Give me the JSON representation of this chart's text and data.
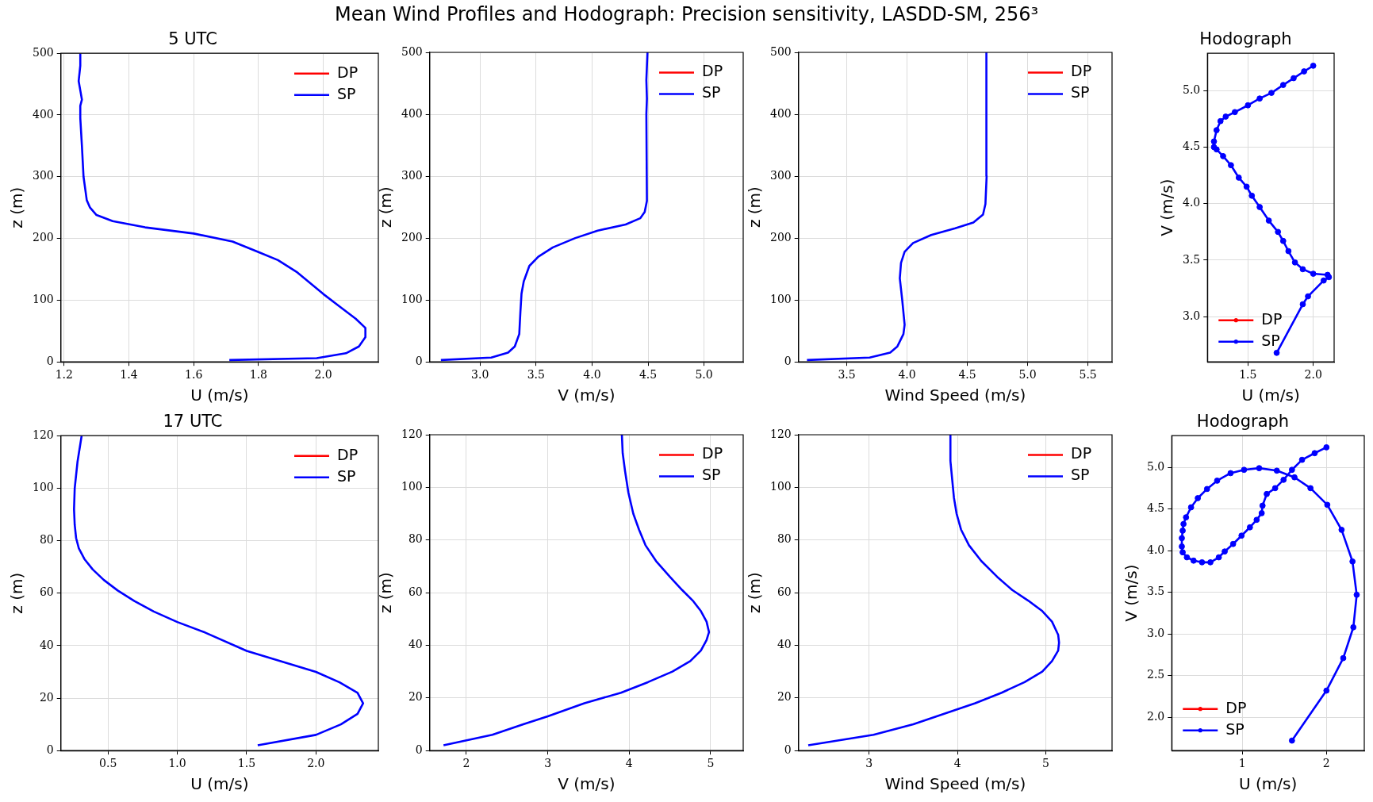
{
  "chart_data": [
    {
      "type": "line",
      "title": "5 UTC",
      "annotations": [
        "Mean Wind Profiles and Hodograph: Precision sensitivity, LASDD-SM, 256³"
      ],
      "xlabel": "U (m/s)",
      "ylabel": "z (m)",
      "xlim": [
        1.19,
        2.17
      ],
      "xticks": [
        1.2,
        1.4,
        1.6,
        1.8,
        {
          "value": 2,
          "label": "2.0"
        }
      ],
      "ylim": [
        0,
        500
      ],
      "yticks": [
        0,
        100,
        200,
        300,
        400,
        500
      ],
      "grid": true,
      "legend": "top right",
      "x": [
        1.71,
        1.98,
        2.07,
        2.11,
        2.13,
        2.13,
        2.1,
        2.05,
        2.0,
        1.92,
        1.86,
        1.8,
        1.72,
        1.6,
        1.45,
        1.35,
        1.3,
        1.28,
        1.27,
        1.26,
        1.255,
        1.25,
        1.25,
        1.255,
        1.25,
        1.245,
        1.25,
        1.25
      ],
      "series": [
        {
          "name": "DP",
          "color": "#ff0000",
          "values": [
            null,
            null,
            null,
            null,
            null,
            null,
            null,
            null,
            null,
            null,
            null,
            null,
            null,
            null,
            null,
            null,
            null,
            null,
            null,
            null,
            null,
            null,
            null,
            null,
            null,
            null,
            null,
            null
          ]
        },
        {
          "name": "SP",
          "color": "#0000ff",
          "values": [
            3,
            6,
            14,
            25,
            40,
            55,
            70,
            90,
            110,
            145,
            165,
            178,
            195,
            208,
            218,
            228,
            238,
            250,
            262,
            300,
            350,
            395,
            415,
            425,
            440,
            455,
            480,
            500
          ]
        }
      ]
    },
    {
      "type": "line",
      "xlabel": "V (m/s)",
      "ylabel": "z (m)",
      "xlim": [
        2.55,
        5.35
      ],
      "xticks": [
        {
          "value": 3,
          "label": "3.0"
        },
        3.5,
        {
          "value": 4,
          "label": "4.0"
        },
        4.5,
        {
          "value": 5,
          "label": "5.0"
        }
      ],
      "ylim": [
        0,
        500
      ],
      "yticks": [
        0,
        100,
        200,
        300,
        400,
        500
      ],
      "grid": true,
      "legend": "top right",
      "x": [
        2.65,
        3.1,
        3.25,
        3.31,
        3.35,
        3.36,
        3.37,
        3.39,
        3.44,
        3.52,
        3.65,
        3.85,
        4.05,
        4.3,
        4.43,
        4.47,
        4.49,
        4.485,
        4.49,
        4.485,
        4.495
      ],
      "series": [
        {
          "name": "DP",
          "color": "#ff0000",
          "values": [
            null,
            null,
            null,
            null,
            null,
            null,
            null,
            null,
            null,
            null,
            null,
            null,
            null,
            null,
            null,
            null,
            null,
            null,
            null,
            null,
            null
          ]
        },
        {
          "name": "SP",
          "color": "#0000ff",
          "values": [
            3,
            7,
            15,
            25,
            45,
            80,
            110,
            130,
            155,
            170,
            185,
            200,
            212,
            222,
            232,
            242,
            260,
            400,
            425,
            455,
            500
          ]
        }
      ]
    },
    {
      "type": "line",
      "xlabel": "Wind Speed (m/s)",
      "ylabel": "z (m)",
      "xlim": [
        3.1,
        5.7
      ],
      "xticks": [
        3.5,
        {
          "value": 4,
          "label": "4.0"
        },
        4.5,
        {
          "value": 5,
          "label": "5.0"
        },
        5.5
      ],
      "ylim": [
        0,
        500
      ],
      "yticks": [
        0,
        100,
        200,
        300,
        400,
        500
      ],
      "grid": true,
      "legend": "top right",
      "x": [
        3.17,
        3.69,
        3.86,
        3.92,
        3.97,
        3.98,
        3.96,
        3.94,
        3.95,
        3.98,
        4.05,
        4.2,
        4.4,
        4.55,
        4.63,
        4.65,
        4.66,
        4.66,
        4.655,
        4.66,
        4.655,
        4.66
      ],
      "series": [
        {
          "name": "DP",
          "color": "#ff0000",
          "values": [
            null,
            null,
            null,
            null,
            null,
            null,
            null,
            null,
            null,
            null,
            null,
            null,
            null,
            null,
            null,
            null,
            null,
            null,
            null,
            null,
            null,
            null
          ]
        },
        {
          "name": "SP",
          "color": "#0000ff",
          "values": [
            3,
            7,
            15,
            25,
            45,
            60,
            100,
            135,
            160,
            178,
            192,
            205,
            216,
            225,
            238,
            255,
            300,
            350,
            400,
            430,
            460,
            500
          ]
        }
      ]
    },
    {
      "type": "line",
      "title": "Hodograph",
      "xlabel": "U (m/s)",
      "ylabel": "V (m/s)",
      "xlim": [
        1.19,
        2.16
      ],
      "xticks": [
        1.5,
        {
          "value": 2,
          "label": "2.0"
        }
      ],
      "ylim": [
        2.6,
        5.33
      ],
      "yticks": [
        {
          "value": 3,
          "label": "3.0"
        },
        3.5,
        {
          "value": 4,
          "label": "4.0"
        },
        4.5,
        {
          "value": 5,
          "label": "5.0"
        }
      ],
      "grid": true,
      "legend": "bottom left",
      "marker": "circle",
      "x": [
        1.72,
        1.92,
        1.96,
        2.08,
        2.12,
        2.11,
        2.0,
        1.92,
        1.86,
        1.81,
        1.77,
        1.73,
        1.66,
        1.59,
        1.53,
        1.49,
        1.43,
        1.37,
        1.31,
        1.26,
        1.24,
        1.24,
        1.26,
        1.29,
        1.33,
        1.4,
        1.5,
        1.59,
        1.68,
        1.77,
        1.85,
        1.93,
        2.0
      ],
      "series": [
        {
          "name": "DP",
          "color": "#ff0000",
          "values": [
            null,
            null,
            null,
            null,
            null,
            null,
            null,
            null,
            null,
            null,
            null,
            null,
            null,
            null,
            null,
            null,
            null,
            null,
            null,
            null,
            null,
            null,
            null,
            null,
            null,
            null,
            null,
            null,
            null,
            null,
            null,
            null,
            null
          ]
        },
        {
          "name": "SP",
          "color": "#0000ff",
          "values": [
            2.68,
            3.11,
            3.18,
            3.32,
            3.35,
            3.37,
            3.38,
            3.42,
            3.48,
            3.58,
            3.67,
            3.75,
            3.85,
            3.97,
            4.07,
            4.15,
            4.23,
            4.34,
            4.42,
            4.48,
            4.5,
            4.55,
            4.65,
            4.73,
            4.77,
            4.81,
            4.87,
            4.93,
            4.98,
            5.05,
            5.11,
            5.17,
            5.22
          ]
        }
      ]
    },
    {
      "type": "line",
      "title": "17 UTC",
      "xlabel": "U (m/s)",
      "ylabel": "z (m)",
      "xlim": [
        0.16,
        2.45
      ],
      "xticks": [
        0.5,
        {
          "value": 1,
          "label": "1.0"
        },
        1.5,
        {
          "value": 2,
          "label": "2.0"
        }
      ],
      "ylim": [
        0,
        120
      ],
      "yticks": [
        0,
        20,
        40,
        60,
        80,
        100,
        120
      ],
      "grid": true,
      "legend": "top right",
      "x": [
        1.58,
        2.0,
        2.18,
        2.3,
        2.34,
        2.3,
        2.17,
        2.0,
        1.75,
        1.5,
        1.2,
        1.0,
        0.83,
        0.69,
        0.57,
        0.47,
        0.39,
        0.33,
        0.29,
        0.27,
        0.26,
        0.255,
        0.26,
        0.28,
        0.31
      ],
      "series": [
        {
          "name": "DP",
          "color": "#ff0000",
          "values": [
            null,
            null,
            null,
            null,
            null,
            null,
            null,
            null,
            null,
            null,
            null,
            null,
            null,
            null,
            null,
            null,
            null,
            null,
            null,
            null,
            null,
            null,
            null,
            null,
            null
          ]
        },
        {
          "name": "SP",
          "color": "#0000ff",
          "values": [
            2,
            6,
            10,
            14,
            18,
            22,
            26,
            30,
            34,
            38,
            45,
            49,
            53,
            57,
            61,
            65,
            69,
            73,
            77,
            81,
            86,
            92,
            100,
            110,
            120
          ]
        }
      ]
    },
    {
      "type": "line",
      "xlabel": "V (m/s)",
      "ylabel": "z (m)",
      "xlim": [
        1.55,
        5.4
      ],
      "xticks": [
        2,
        3,
        4,
        5
      ],
      "ylim": [
        0,
        120
      ],
      "yticks": [
        0,
        20,
        40,
        60,
        80,
        100,
        120
      ],
      "grid": true,
      "legend": "top right",
      "x": [
        1.72,
        2.32,
        2.7,
        3.0,
        3.45,
        3.9,
        4.23,
        4.53,
        4.75,
        4.88,
        4.95,
        4.98,
        4.95,
        4.88,
        4.78,
        4.65,
        4.5,
        4.33,
        4.2,
        4.12,
        4.05,
        3.99,
        3.95,
        3.92,
        3.91
      ],
      "series": [
        {
          "name": "DP",
          "color": "#ff0000",
          "values": [
            null,
            null,
            null,
            null,
            null,
            null,
            null,
            null,
            null,
            null,
            null,
            null,
            null,
            null,
            null,
            null,
            null,
            null,
            null,
            null,
            null,
            null,
            null,
            null,
            null
          ]
        },
        {
          "name": "SP",
          "color": "#0000ff",
          "values": [
            2,
            6,
            10,
            13,
            18,
            22,
            26,
            30,
            34,
            38,
            42,
            45,
            49,
            53,
            57,
            61,
            66,
            72,
            78,
            84,
            90,
            98,
            106,
            113,
            120
          ]
        }
      ]
    },
    {
      "type": "line",
      "xlabel": "Wind Speed (m/s)",
      "ylabel": "z (m)",
      "xlim": [
        2.2,
        5.75
      ],
      "xticks": [
        3,
        4,
        5
      ],
      "ylim": [
        0,
        120
      ],
      "yticks": [
        0,
        20,
        40,
        60,
        80,
        100,
        120
      ],
      "grid": true,
      "legend": "top right",
      "x": [
        2.31,
        3.05,
        3.5,
        3.85,
        4.2,
        4.5,
        4.76,
        4.96,
        5.07,
        5.14,
        5.15,
        5.14,
        5.07,
        4.96,
        4.8,
        4.62,
        4.45,
        4.27,
        4.13,
        4.04,
        3.99,
        3.96,
        3.94,
        3.92,
        3.92
      ],
      "series": [
        {
          "name": "DP",
          "color": "#ff0000",
          "values": [
            null,
            null,
            null,
            null,
            null,
            null,
            null,
            null,
            null,
            null,
            null,
            null,
            null,
            null,
            null,
            null,
            null,
            null,
            null,
            null,
            null,
            null,
            null,
            null,
            null
          ]
        },
        {
          "name": "SP",
          "color": "#0000ff",
          "values": [
            2,
            6,
            10,
            14,
            18,
            22,
            26,
            30,
            34,
            38,
            41,
            44,
            49,
            53,
            57,
            61,
            66,
            72,
            78,
            84,
            90,
            96,
            103,
            110,
            120
          ]
        }
      ]
    },
    {
      "type": "line",
      "title": "Hodograph",
      "xlabel": "U (m/s)",
      "ylabel": "V (m/s)",
      "xlim": [
        0.16,
        2.45
      ],
      "xticks": [
        1,
        2
      ],
      "ylim": [
        1.6,
        5.38
      ],
      "yticks": [
        {
          "value": 2,
          "label": "2.0"
        },
        2.5,
        {
          "value": 3,
          "label": "3.0"
        },
        3.5,
        {
          "value": 4,
          "label": "4.0"
        },
        4.5,
        {
          "value": 5,
          "label": "5.0"
        }
      ],
      "grid": true,
      "legend": "bottom left",
      "marker": "circle",
      "x": [
        1.59,
        2.0,
        2.2,
        2.32,
        2.36,
        2.31,
        2.18,
        2.01,
        1.81,
        1.62,
        1.41,
        1.2,
        1.02,
        0.86,
        0.7,
        0.58,
        0.47,
        0.39,
        0.33,
        0.3,
        0.29,
        0.28,
        0.28,
        0.29,
        0.34,
        0.42,
        0.52,
        0.62,
        0.72,
        0.79,
        0.89,
        0.99,
        1.09,
        1.17,
        1.23,
        1.24,
        1.29,
        1.39,
        1.49,
        1.59,
        1.71,
        1.86,
        2.0
      ],
      "series": [
        {
          "name": "DP",
          "color": "#ff0000",
          "values": [
            null,
            null,
            null,
            null,
            null,
            null,
            null,
            null,
            null,
            null,
            null,
            null,
            null,
            null,
            null,
            null,
            null,
            null,
            null,
            null,
            null,
            null,
            null,
            null,
            null,
            null,
            null,
            null,
            null,
            null,
            null,
            null,
            null,
            null,
            null,
            null,
            null,
            null,
            null,
            null,
            null,
            null,
            null
          ]
        },
        {
          "name": "SP",
          "color": "#0000ff",
          "values": [
            1.72,
            2.32,
            2.71,
            3.08,
            3.47,
            3.87,
            4.25,
            4.55,
            4.75,
            4.88,
            4.96,
            4.99,
            4.97,
            4.93,
            4.84,
            4.74,
            4.63,
            4.52,
            4.4,
            4.32,
            4.24,
            4.15,
            4.05,
            3.98,
            3.92,
            3.88,
            3.86,
            3.86,
            3.92,
            3.99,
            4.08,
            4.18,
            4.28,
            4.37,
            4.45,
            4.54,
            4.68,
            4.75,
            4.85,
            4.97,
            5.09,
            5.17,
            5.24
          ]
        }
      ]
    }
  ]
}
